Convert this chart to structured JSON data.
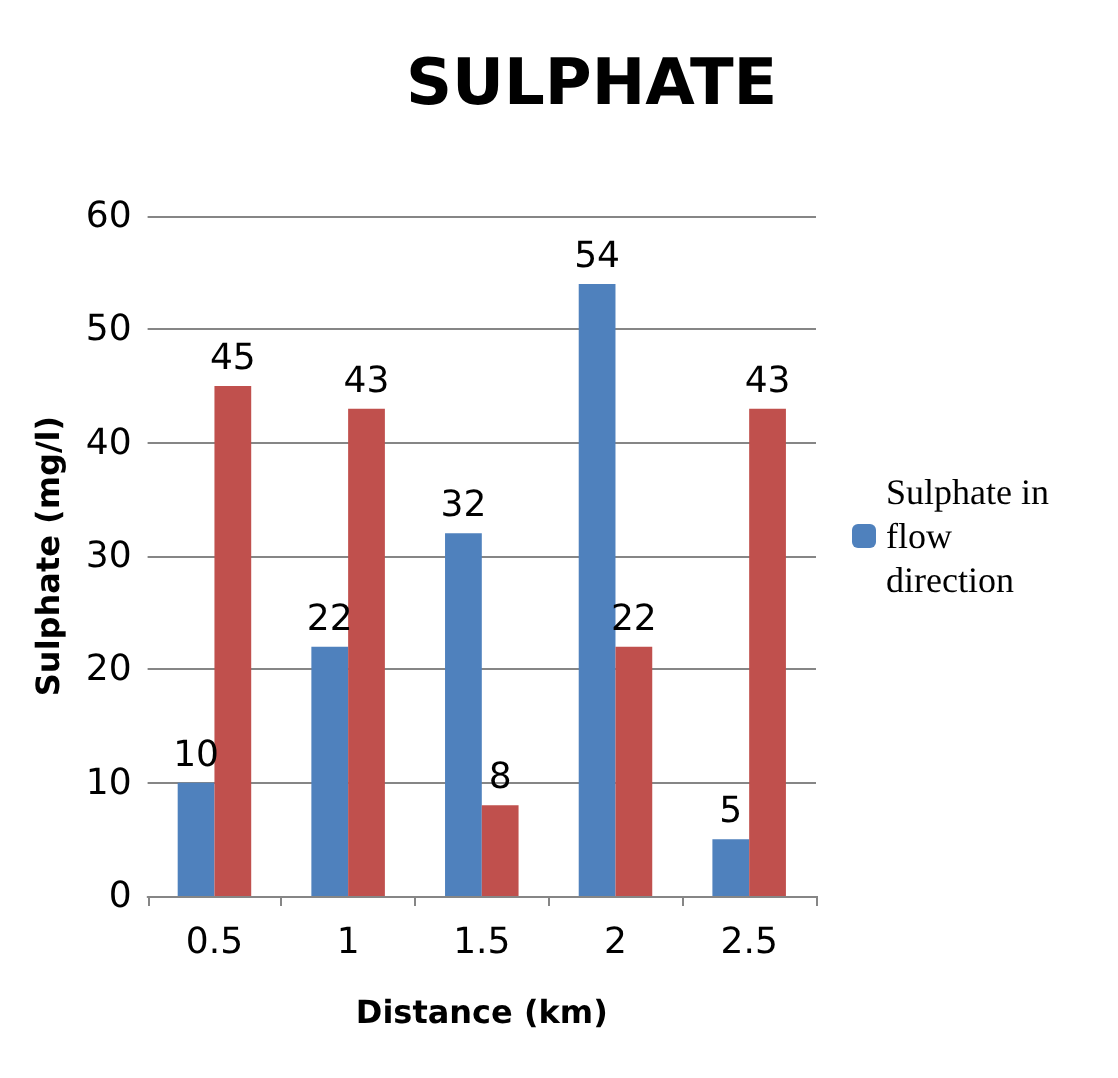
{
  "chart_data": {
    "type": "bar",
    "title": "SULPHATE",
    "xlabel": "Distance (km)",
    "ylabel": "Sulphate (mg/l)",
    "categories": [
      "0.5",
      "1",
      "1.5",
      "2",
      "2.5"
    ],
    "series": [
      {
        "name": "Sulphate in flow direction",
        "color": "#4f81bd",
        "values": [
          10,
          22,
          32,
          54,
          5
        ]
      },
      {
        "color": "#c0504d",
        "values": [
          45,
          43,
          8,
          22,
          43
        ]
      }
    ],
    "ylim": [
      0,
      60
    ],
    "yticks": [
      0,
      10,
      20,
      30,
      40,
      50,
      60
    ],
    "grid": "y",
    "legend": "right",
    "data_labels": true
  }
}
